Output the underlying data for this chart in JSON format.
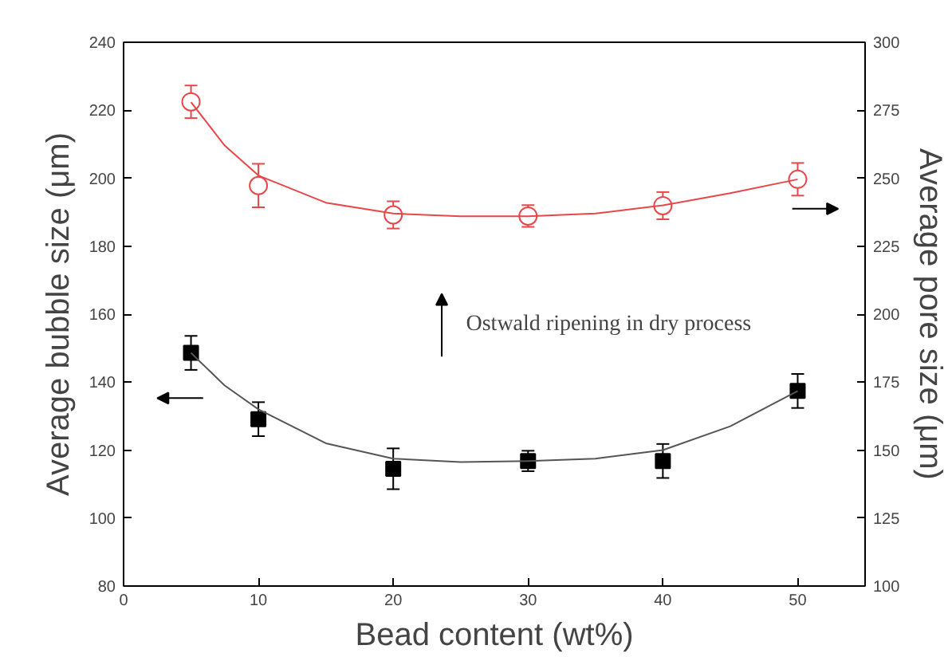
{
  "chart_data": {
    "type": "scatter",
    "xlabel": "Bead content (wt%)",
    "ylabel": "Average bubble size (μm)",
    "y2label": "Average pore size (μm)",
    "x": [
      5,
      10,
      20,
      30,
      40,
      50
    ],
    "xlim": [
      0,
      55
    ],
    "xticks": [
      0,
      10,
      20,
      30,
      40,
      50
    ],
    "ylim": [
      80,
      240
    ],
    "yticks": [
      80,
      100,
      120,
      140,
      160,
      180,
      200,
      220,
      240
    ],
    "y2lim": [
      100,
      300
    ],
    "y2ticks": [
      100,
      125,
      150,
      175,
      200,
      225,
      250,
      275,
      300
    ],
    "grid": false,
    "series": [
      {
        "marker": "square",
        "color": "#000000",
        "values": [
          148.6,
          129.1,
          114.5,
          116.8,
          116.8,
          137.4
        ],
        "errors": [
          5,
          5,
          6,
          3,
          5,
          5
        ]
      },
      {
        "marker": "circle",
        "axis": "y2",
        "color": "#e8474a",
        "values": [
          278.1,
          247.3,
          236.5,
          236.1,
          239.9,
          249.6
        ],
        "errors": [
          6,
          8,
          5,
          4,
          5,
          6
        ]
      },
      {
        "type": "line",
        "color": "#555555",
        "x": [
          5,
          7.5,
          10,
          15,
          20,
          25,
          30,
          35,
          40,
          45,
          50
        ],
        "values": [
          148.6,
          139,
          132,
          122,
          117.5,
          116.5,
          116.8,
          117.5,
          120,
          127,
          137.4
        ]
      },
      {
        "type": "line",
        "axis": "y2",
        "color": "#e8474a",
        "x": [
          5,
          7.5,
          10,
          15,
          20,
          25,
          30,
          35,
          40,
          45,
          50
        ],
        "values": [
          278,
          262,
          251,
          241,
          237,
          236,
          236,
          237,
          240,
          244.5,
          249.6
        ]
      }
    ],
    "annotations": [
      "Ostwald ripening in dry process"
    ]
  }
}
